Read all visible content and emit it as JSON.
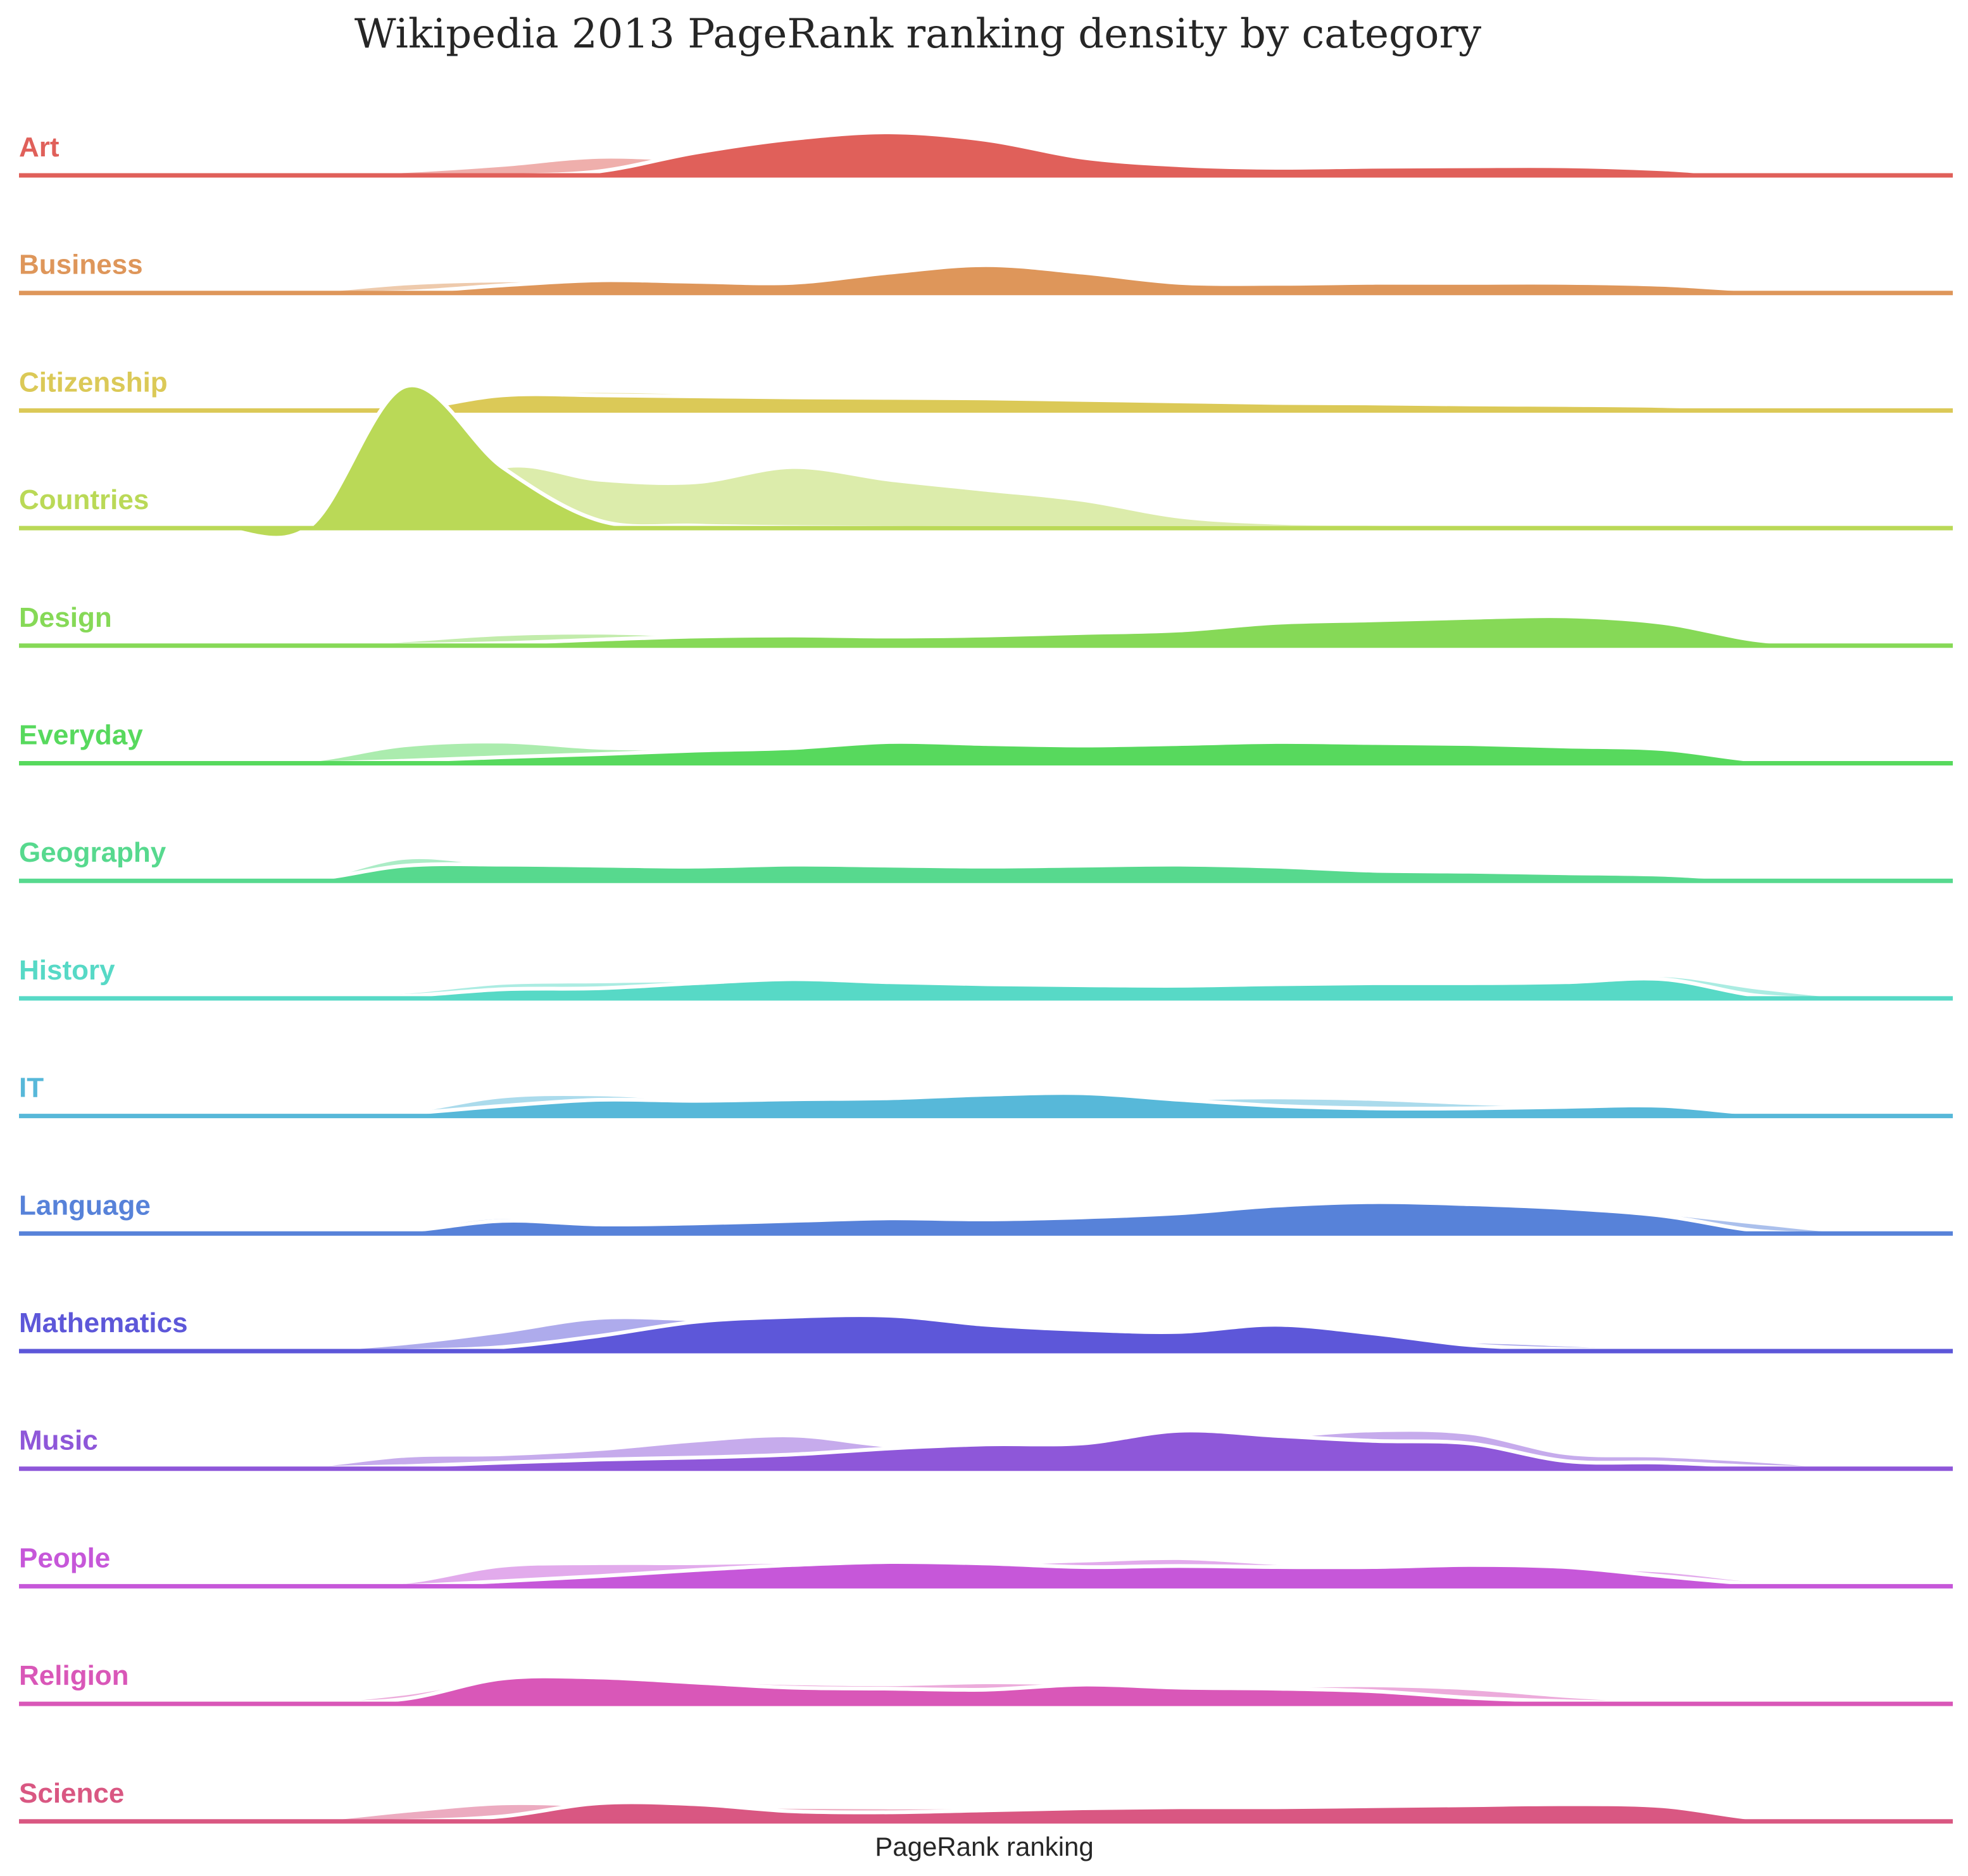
{
  "chart_data": {
    "type": "area",
    "style": "ridgeline",
    "title": "Wikipedia 2013 PageRank ranking density by category",
    "xlabel": "PageRank ranking",
    "ylabel": "",
    "x": [
      0.0,
      0.05,
      0.1,
      0.15,
      0.2,
      0.25,
      0.3,
      0.35,
      0.4,
      0.45,
      0.5,
      0.55,
      0.6,
      0.65,
      0.7,
      0.75,
      0.8,
      0.85,
      0.9,
      0.95,
      1.0
    ],
    "grid": false,
    "legend": "none",
    "series": [
      {
        "name": "Art",
        "color": "#e0605a",
        "back": [
          0,
          0,
          0,
          0.02,
          0.08,
          0.2,
          0.36,
          0.3,
          0.25,
          0.25,
          0.25,
          0.22,
          0.15,
          0.08,
          0.05,
          0.04,
          0.03,
          0.02,
          0.01,
          0,
          0
        ],
        "front": [
          0,
          0,
          0,
          0,
          0,
          0,
          0.08,
          0.45,
          0.72,
          0.85,
          0.7,
          0.35,
          0.2,
          0.15,
          0.17,
          0.18,
          0.18,
          0.12,
          0,
          0,
          0
        ]
      },
      {
        "name": "Business",
        "color": "#de965a",
        "back": [
          0,
          0,
          0,
          0.03,
          0.18,
          0.24,
          0.22,
          0.15,
          0.1,
          0.09,
          0.1,
          0.2,
          0.22,
          0.22,
          0.22,
          0.22,
          0.24,
          0.2,
          0.08,
          0.01,
          0
        ],
        "front": [
          0,
          0,
          0,
          0,
          0.02,
          0.15,
          0.25,
          0.22,
          0.2,
          0.4,
          0.55,
          0.4,
          0.2,
          0.18,
          0.2,
          0.2,
          0.2,
          0.16,
          0.05,
          0,
          0
        ]
      },
      {
        "name": "Citizenship",
        "color": "#dbc957",
        "back": [
          0,
          0,
          0,
          0.01,
          0.1,
          0.33,
          0.38,
          0.34,
          0.24,
          0.22,
          0.23,
          0.22,
          0.2,
          0.16,
          0.1,
          0.06,
          0.04,
          0.02,
          0.01,
          0,
          0
        ],
        "front": [
          0,
          0,
          0,
          0.01,
          0.02,
          0.3,
          0.3,
          0.28,
          0.26,
          0.25,
          0.24,
          0.21,
          0.18,
          0.15,
          0.14,
          0.12,
          0.11,
          0.09,
          0.03,
          0,
          0
        ]
      },
      {
        "name": "Countries",
        "color": "#bad957",
        "back": [
          0,
          0,
          0,
          0.01,
          0.2,
          1.2,
          0.95,
          0.9,
          1.2,
          0.95,
          0.75,
          0.55,
          0.22,
          0.1,
          0.08,
          0.06,
          0.04,
          0.02,
          0.01,
          0,
          0
        ],
        "front": [
          0,
          0,
          0,
          0.02,
          2.8,
          1.2,
          0.15,
          0.05,
          0.02,
          0.01,
          0.01,
          0.01,
          0.01,
          0.01,
          0.01,
          0.01,
          0,
          0,
          0,
          0,
          0
        ]
      },
      {
        "name": "Design",
        "color": "#86d957",
        "back": [
          0,
          0,
          0,
          0.02,
          0.1,
          0.22,
          0.25,
          0.2,
          0.15,
          0.12,
          0.15,
          0.18,
          0.2,
          0.22,
          0.23,
          0.25,
          0.28,
          0.3,
          0.12,
          0.02,
          0
        ],
        "front": [
          0,
          0,
          0,
          0,
          0.02,
          0.05,
          0.12,
          0.18,
          0.2,
          0.18,
          0.2,
          0.25,
          0.3,
          0.45,
          0.5,
          0.55,
          0.58,
          0.45,
          0.1,
          0,
          0
        ]
      },
      {
        "name": "Everyday",
        "color": "#57d95d",
        "back": [
          0,
          0,
          0,
          0.05,
          0.35,
          0.42,
          0.3,
          0.28,
          0.28,
          0.32,
          0.3,
          0.28,
          0.3,
          0.38,
          0.32,
          0.28,
          0.24,
          0.2,
          0.05,
          0,
          0
        ],
        "front": [
          0,
          0,
          0,
          0,
          0.05,
          0.12,
          0.18,
          0.25,
          0.3,
          0.42,
          0.38,
          0.35,
          0.38,
          0.42,
          0.4,
          0.38,
          0.33,
          0.28,
          0.05,
          0,
          0
        ]
      },
      {
        "name": "Geography",
        "color": "#57d98e",
        "back": [
          0,
          0,
          0,
          0.02,
          0.45,
          0.32,
          0.27,
          0.25,
          0.28,
          0.32,
          0.34,
          0.3,
          0.25,
          0.22,
          0.2,
          0.18,
          0.16,
          0.12,
          0.04,
          0,
          0
        ],
        "front": [
          0,
          0,
          0,
          0.02,
          0.3,
          0.32,
          0.3,
          0.28,
          0.32,
          0.3,
          0.28,
          0.3,
          0.32,
          0.28,
          0.2,
          0.18,
          0.15,
          0.12,
          0.02,
          0,
          0
        ]
      },
      {
        "name": "History",
        "color": "#57d9c6",
        "back": [
          0,
          0,
          0,
          0.02,
          0.12,
          0.3,
          0.33,
          0.35,
          0.33,
          0.32,
          0.3,
          0.26,
          0.24,
          0.25,
          0.27,
          0.3,
          0.3,
          0.45,
          0.2,
          0.02,
          0
        ],
        "front": [
          0,
          0,
          0,
          0.01,
          0.05,
          0.18,
          0.2,
          0.3,
          0.38,
          0.32,
          0.28,
          0.26,
          0.25,
          0.28,
          0.3,
          0.3,
          0.32,
          0.38,
          0.05,
          0,
          0
        ]
      },
      {
        "name": "IT",
        "color": "#57b8d9",
        "back": [
          0,
          0,
          0,
          0.01,
          0.08,
          0.38,
          0.42,
          0.33,
          0.3,
          0.33,
          0.45,
          0.4,
          0.35,
          0.36,
          0.33,
          0.25,
          0.2,
          0.22,
          0.06,
          0,
          0
        ],
        "front": [
          0,
          0,
          0,
          0,
          0.05,
          0.2,
          0.32,
          0.3,
          0.33,
          0.35,
          0.42,
          0.45,
          0.32,
          0.2,
          0.15,
          0.15,
          0.18,
          0.2,
          0.04,
          0,
          0
        ]
      },
      {
        "name": "Language",
        "color": "#5782d9",
        "back": [
          0,
          0,
          0,
          0.02,
          0.1,
          0.32,
          0.2,
          0.18,
          0.25,
          0.32,
          0.3,
          0.32,
          0.38,
          0.45,
          0.55,
          0.6,
          0.55,
          0.4,
          0.2,
          0.02,
          0
        ],
        "front": [
          0,
          0,
          0,
          0.01,
          0.05,
          0.25,
          0.18,
          0.2,
          0.25,
          0.3,
          0.28,
          0.32,
          0.4,
          0.55,
          0.62,
          0.58,
          0.5,
          0.35,
          0.05,
          0,
          0
        ]
      },
      {
        "name": "Mathematics",
        "color": "#5d57d9",
        "back": [
          0,
          0,
          0,
          0.02,
          0.15,
          0.38,
          0.65,
          0.62,
          0.55,
          0.58,
          0.45,
          0.35,
          0.25,
          0.18,
          0.1,
          0.18,
          0.12,
          0.04,
          0.01,
          0,
          0
        ],
        "front": [
          0,
          0,
          0,
          0,
          0.01,
          0.08,
          0.3,
          0.58,
          0.68,
          0.7,
          0.52,
          0.42,
          0.38,
          0.52,
          0.35,
          0.12,
          0.04,
          0.01,
          0,
          0,
          0
        ]
      },
      {
        "name": "Music",
        "color": "#8e57d9",
        "back": [
          0,
          0,
          0,
          0.05,
          0.25,
          0.28,
          0.38,
          0.55,
          0.65,
          0.45,
          0.42,
          0.42,
          0.45,
          0.62,
          0.75,
          0.7,
          0.3,
          0.25,
          0.15,
          0.02,
          0
        ],
        "front": [
          0,
          0,
          0,
          0.01,
          0.05,
          0.12,
          0.18,
          0.22,
          0.28,
          0.4,
          0.48,
          0.5,
          0.75,
          0.65,
          0.55,
          0.5,
          0.15,
          0.12,
          0.04,
          0,
          0
        ]
      },
      {
        "name": "People",
        "color": "#c657d9",
        "back": [
          0,
          0,
          0,
          0.02,
          0.08,
          0.4,
          0.45,
          0.45,
          0.48,
          0.5,
          0.45,
          0.5,
          0.55,
          0.45,
          0.35,
          0.35,
          0.35,
          0.3,
          0.1,
          0.01,
          0
        ],
        "front": [
          0,
          0,
          0,
          0,
          0.01,
          0.1,
          0.2,
          0.32,
          0.42,
          0.48,
          0.45,
          0.38,
          0.4,
          0.38,
          0.38,
          0.42,
          0.38,
          0.2,
          0.04,
          0,
          0
        ]
      },
      {
        "name": "Religion",
        "color": "#d957b8",
        "back": [
          0,
          0,
          0,
          0.02,
          0.2,
          0.48,
          0.42,
          0.45,
          0.4,
          0.38,
          0.42,
          0.4,
          0.38,
          0.35,
          0.36,
          0.3,
          0.15,
          0.05,
          0.01,
          0,
          0
        ],
        "front": [
          0,
          0,
          0,
          0.01,
          0.1,
          0.5,
          0.52,
          0.42,
          0.32,
          0.3,
          0.28,
          0.38,
          0.32,
          0.3,
          0.25,
          0.12,
          0.05,
          0.01,
          0,
          0,
          0
        ]
      },
      {
        "name": "Science",
        "color": "#d95782",
        "back": [
          0,
          0,
          0,
          0.02,
          0.2,
          0.35,
          0.32,
          0.3,
          0.28,
          0.27,
          0.27,
          0.28,
          0.3,
          0.32,
          0.3,
          0.27,
          0.25,
          0.24,
          0.05,
          0,
          0
        ],
        "front": [
          0,
          0,
          0,
          0,
          0.01,
          0.1,
          0.36,
          0.34,
          0.2,
          0.18,
          0.22,
          0.26,
          0.28,
          0.28,
          0.3,
          0.32,
          0.34,
          0.3,
          0.05,
          0,
          0
        ]
      }
    ]
  }
}
